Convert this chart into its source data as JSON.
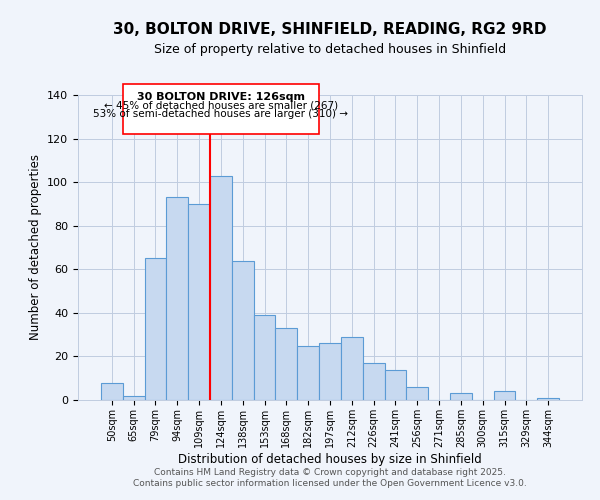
{
  "title": "30, BOLTON DRIVE, SHINFIELD, READING, RG2 9RD",
  "subtitle": "Size of property relative to detached houses in Shinfield",
  "xlabel": "Distribution of detached houses by size in Shinfield",
  "ylabel": "Number of detached properties",
  "bin_labels": [
    "50sqm",
    "65sqm",
    "79sqm",
    "94sqm",
    "109sqm",
    "124sqm",
    "138sqm",
    "153sqm",
    "168sqm",
    "182sqm",
    "197sqm",
    "212sqm",
    "226sqm",
    "241sqm",
    "256sqm",
    "271sqm",
    "285sqm",
    "300sqm",
    "315sqm",
    "329sqm",
    "344sqm"
  ],
  "bar_heights": [
    8,
    2,
    65,
    93,
    90,
    103,
    64,
    39,
    33,
    25,
    26,
    29,
    17,
    14,
    6,
    0,
    3,
    0,
    4,
    0,
    1
  ],
  "bar_color": "#c7d9f0",
  "bar_edge_color": "#5b9bd5",
  "vline_color": "red",
  "annotation_title": "30 BOLTON DRIVE: 126sqm",
  "annotation_line1": "← 45% of detached houses are smaller (267)",
  "annotation_line2": "53% of semi-detached houses are larger (310) →",
  "box_edge_color": "red",
  "ylim": [
    0,
    140
  ],
  "yticks": [
    0,
    20,
    40,
    60,
    80,
    100,
    120,
    140
  ],
  "footer_line1": "Contains HM Land Registry data © Crown copyright and database right 2025.",
  "footer_line2": "Contains public sector information licensed under the Open Government Licence v3.0.",
  "bg_color": "#f0f4fb",
  "grid_color": "#c0cce0"
}
